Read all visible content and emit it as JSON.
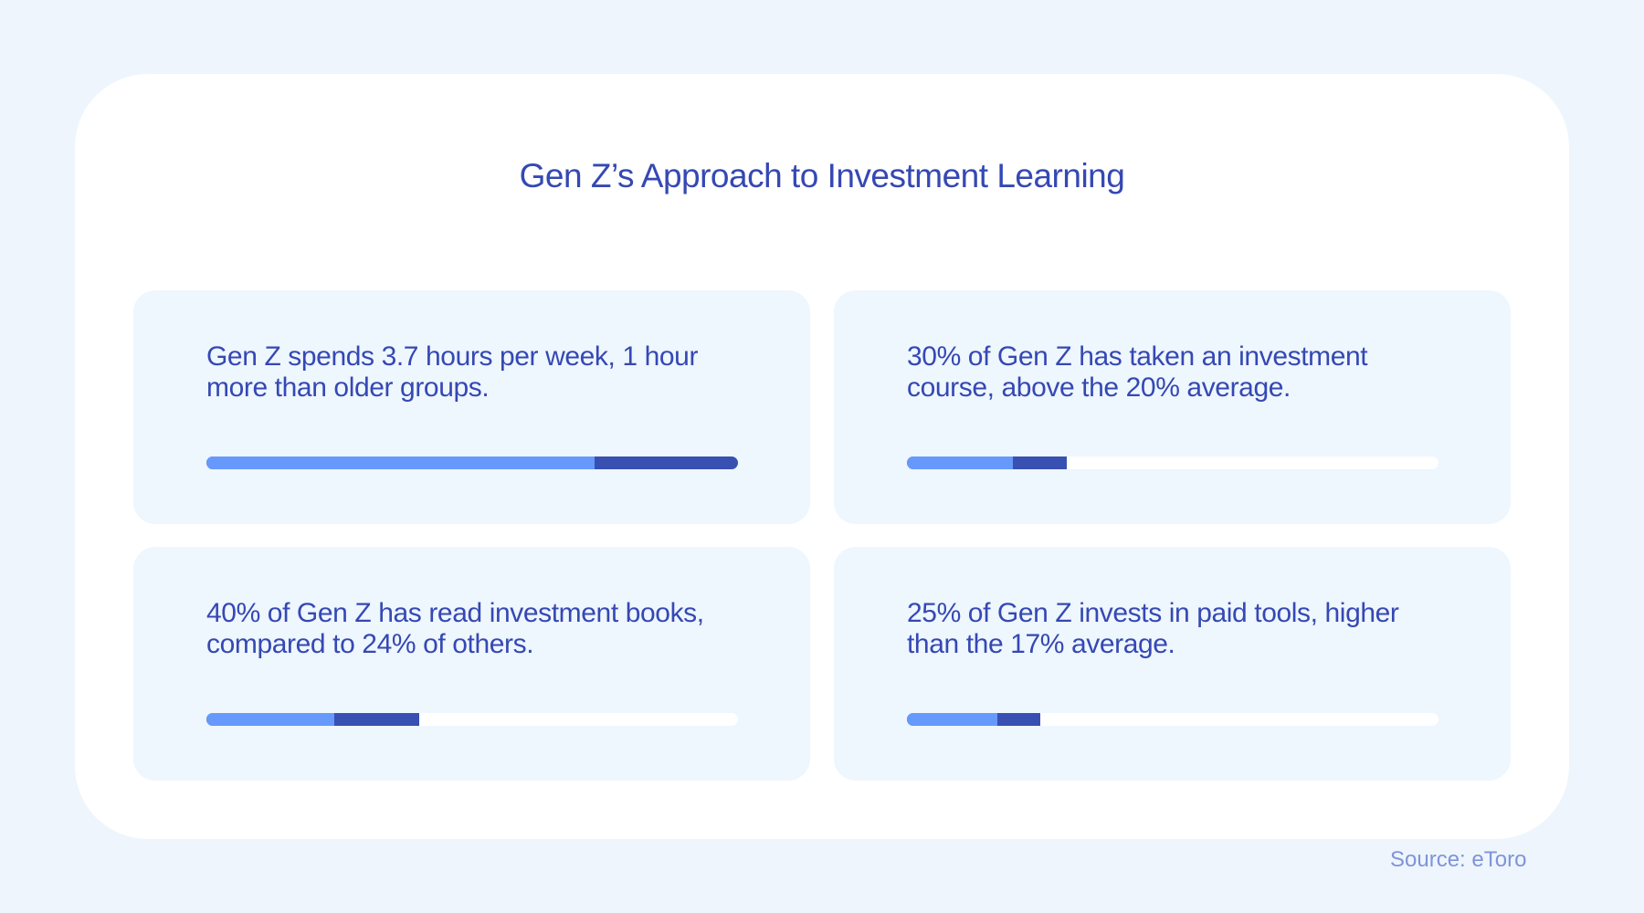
{
  "title": "Gen Z’s Approach to Investment Learning",
  "source": "Source: eToro",
  "colors": {
    "light": "#6699fb",
    "dark": "#3850b2",
    "text": "#3548b3"
  },
  "chart_data": {
    "type": "bar",
    "title": "Gen Z’s Approach to Investment Learning",
    "items": [
      {
        "text": "Gen Z spends 3.7 hours per week, 1 hour more than older groups.",
        "max": 3.7,
        "light": 2.7,
        "dark": 3.7
      },
      {
        "text": "30% of Gen Z has taken an investment course, above the 20% average.",
        "max": 100,
        "light": 20,
        "dark": 30
      },
      {
        "text": "40% of Gen Z has read investment books, compared to 24% of others.",
        "max": 100,
        "light": 24,
        "dark": 40
      },
      {
        "text": "25% of Gen Z invests in paid tools, higher than the 17% average.",
        "max": 100,
        "light": 17,
        "dark": 25
      }
    ]
  }
}
